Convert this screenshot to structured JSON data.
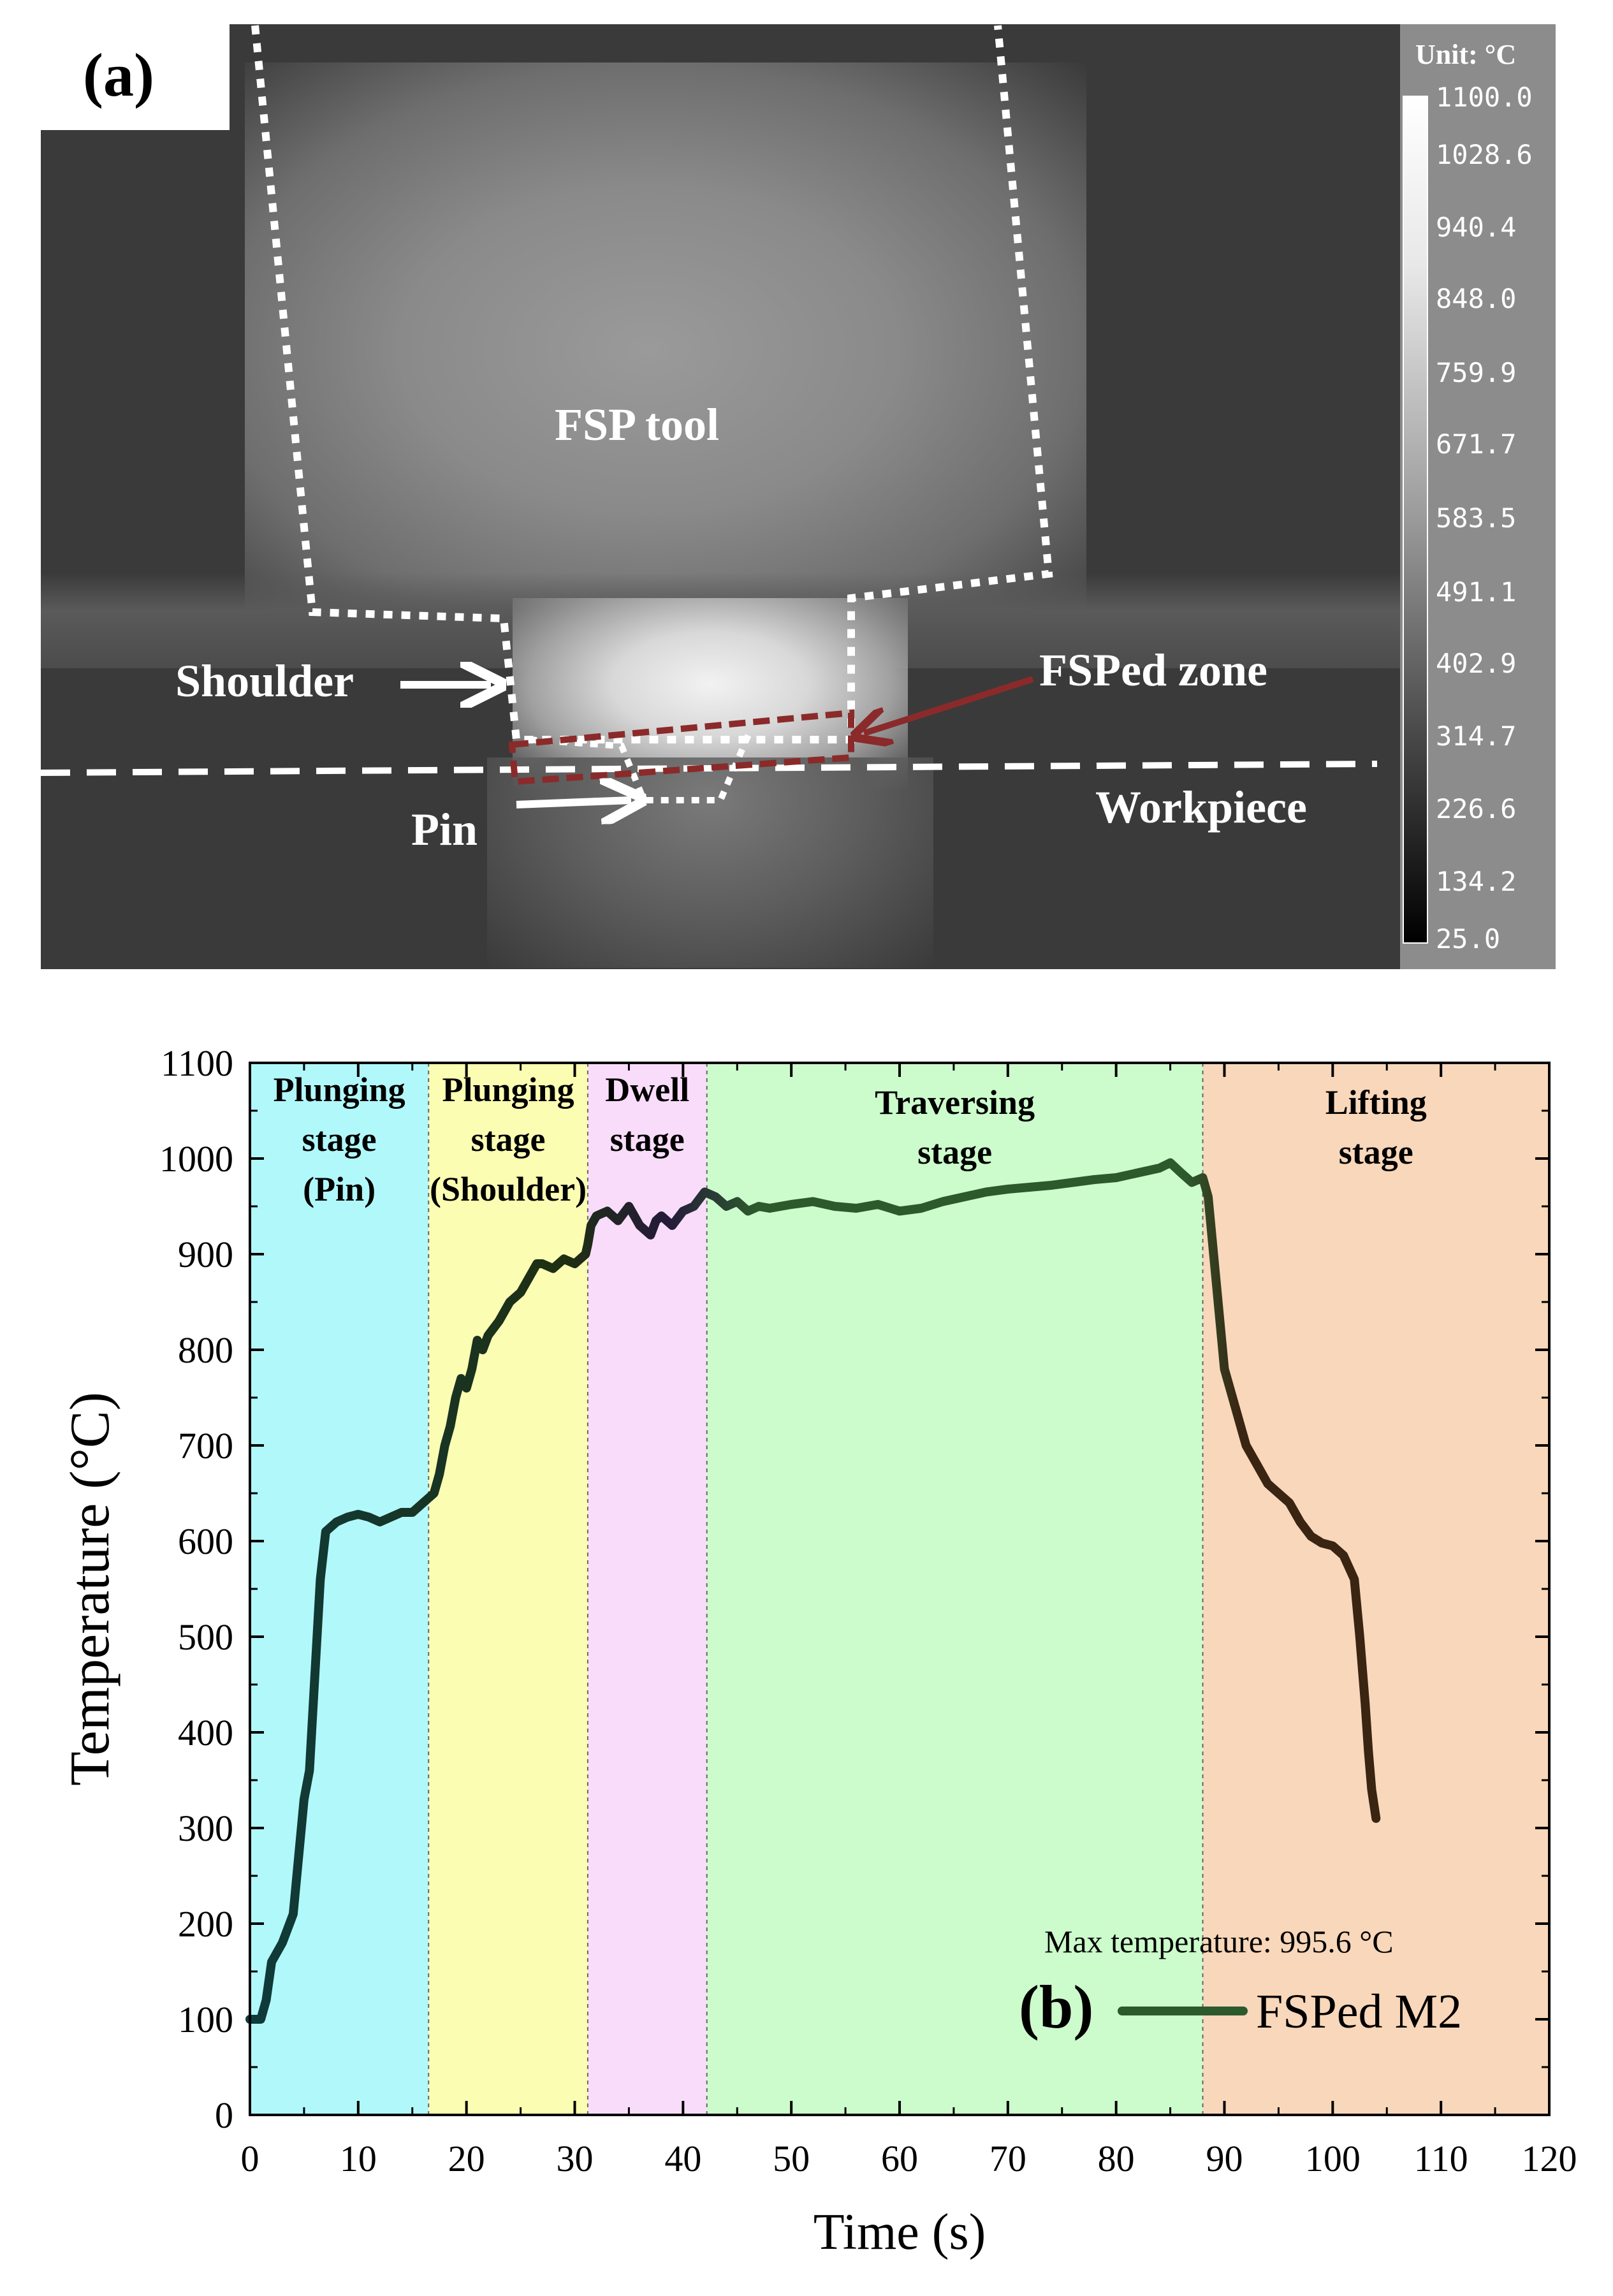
{
  "panel_a": {
    "label": "(a)",
    "colorbar": {
      "unit": "Unit: °C",
      "ticks": [
        "1100.0",
        "1028.6",
        "940.4",
        "848.0",
        "759.9",
        "671.7",
        "583.5",
        "491.1",
        "402.9",
        "314.7",
        "226.6",
        "134.2",
        "25.0"
      ]
    },
    "annotations": {
      "tool": "FSP tool",
      "shoulder": "Shoulder",
      "fsped_zone": "FSPed zone",
      "workpiece": "Workpiece",
      "pin": "Pin"
    },
    "colors": {
      "fsped_zone_box": "#8b2a2a",
      "outline": "#ffffff"
    }
  },
  "panel_b": {
    "label": "(b)",
    "max_temperature_note": "Max temperature: 995.6 °C",
    "legend_label": "FSPed M2",
    "stages": [
      {
        "lines": [
          "Plunging",
          "stage",
          "(Pin)"
        ],
        "start": 0,
        "end": 16.5,
        "color": "#b1f8fb"
      },
      {
        "lines": [
          "Plunging",
          "stage",
          "(Shoulder)"
        ],
        "start": 16.5,
        "end": 31.2,
        "color": "#fbfdb2"
      },
      {
        "lines": [
          "Dwell",
          "stage"
        ],
        "start": 31.2,
        "end": 42.2,
        "color": "#f9dcfa"
      },
      {
        "lines": [
          "Traversing",
          "stage"
        ],
        "start": 42.2,
        "end": 88,
        "color": "#ccfccc"
      },
      {
        "lines": [
          "Lifting",
          "stage"
        ],
        "start": 88,
        "end": 120,
        "color": "#f8d7ba"
      }
    ],
    "colors": {
      "note": "#e8202a"
    }
  },
  "chart_data": {
    "type": "line",
    "xlabel": "Time (s)",
    "ylabel": "Temperature (°C)",
    "xlim": [
      0,
      120
    ],
    "ylim": [
      0,
      1100
    ],
    "x_ticks": [
      "0",
      "10",
      "20",
      "30",
      "40",
      "50",
      "60",
      "70",
      "80",
      "90",
      "100",
      "110",
      "120"
    ],
    "y_ticks": [
      "0",
      "100",
      "200",
      "300",
      "400",
      "500",
      "600",
      "700",
      "800",
      "900",
      "1000",
      "1100"
    ],
    "series": [
      {
        "name": "FSPed M2",
        "x": [
          0,
          1,
          1.5,
          2,
          3,
          4,
          5,
          5.5,
          6,
          6.5,
          7,
          7.5,
          8,
          9,
          10,
          11,
          12,
          13,
          14,
          15,
          16,
          16.5,
          17,
          17.5,
          18,
          18.5,
          19,
          19.5,
          20,
          20.5,
          21,
          21.5,
          22,
          23,
          24,
          25,
          26,
          26.5,
          27,
          28,
          29,
          30,
          31,
          31.2,
          31.5,
          32,
          33,
          34,
          35,
          36,
          37,
          37.5,
          38,
          39,
          40,
          41,
          42,
          43,
          44,
          45,
          46,
          47,
          48,
          50,
          52,
          54,
          56,
          58,
          60,
          62,
          64,
          66,
          68,
          70,
          72,
          74,
          76,
          78,
          80,
          82,
          84,
          85,
          86,
          87,
          88,
          88.5,
          89,
          89.5,
          90,
          91,
          92,
          93,
          94,
          95,
          96,
          97,
          98,
          99,
          100,
          101,
          102,
          102.5,
          103,
          103.3,
          103.6,
          104
        ],
        "y": [
          100,
          100,
          120,
          160,
          180,
          210,
          330,
          360,
          460,
          560,
          610,
          615,
          620,
          625,
          628,
          625,
          620,
          625,
          630,
          630,
          640,
          645,
          650,
          670,
          700,
          720,
          750,
          770,
          760,
          780,
          810,
          800,
          815,
          830,
          850,
          860,
          880,
          890,
          890,
          885,
          895,
          890,
          900,
          910,
          930,
          940,
          945,
          935,
          950,
          930,
          920,
          935,
          940,
          930,
          945,
          950,
          965,
          960,
          950,
          955,
          945,
          950,
          948,
          952,
          955,
          950,
          948,
          952,
          945,
          948,
          955,
          960,
          965,
          968,
          970,
          972,
          975,
          978,
          980,
          985,
          990,
          995.6,
          985,
          975,
          980,
          960,
          900,
          840,
          780,
          740,
          700,
          680,
          660,
          650,
          640,
          620,
          605,
          598,
          595,
          585,
          560,
          500,
          430,
          380,
          340,
          310
        ]
      }
    ]
  }
}
